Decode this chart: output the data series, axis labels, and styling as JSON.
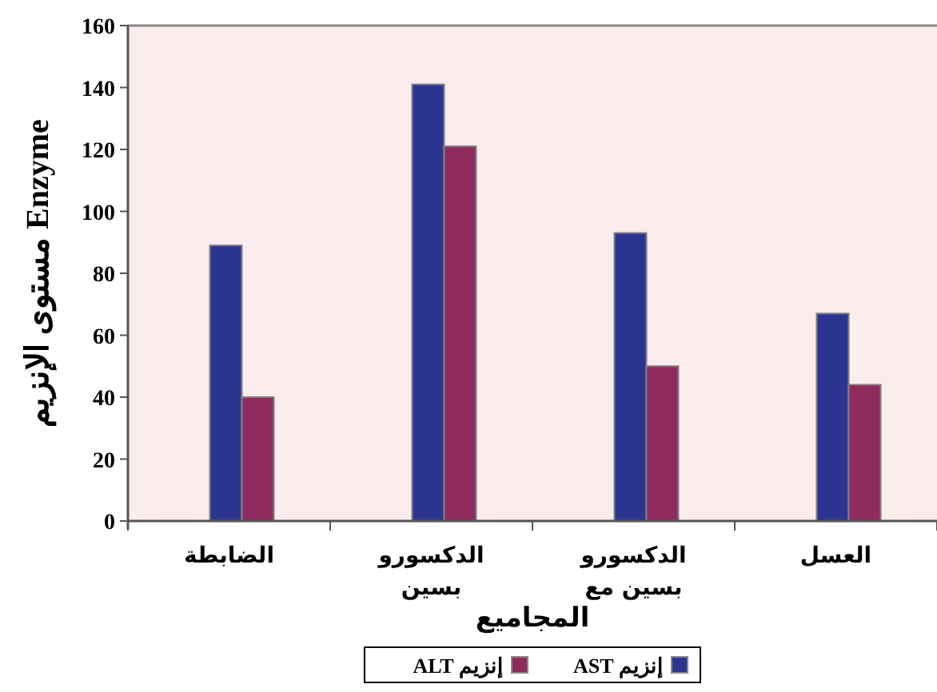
{
  "chart_data": {
    "type": "bar",
    "xlabel": "المجاميع",
    "ylabel": "Enzyme مستوى الإنزيم",
    "categories": [
      "الضابطة",
      "الدكسورو بسين",
      "الدكسورو بسين مع",
      "العسل"
    ],
    "series": [
      {
        "name": "إنزيم AST",
        "color": "#2b3590",
        "values": [
          89,
          141,
          93,
          67
        ]
      },
      {
        "name": "إنزيم ALT",
        "color": "#8e2a5e",
        "values": [
          40,
          121,
          50,
          44
        ]
      }
    ],
    "ylim": [
      0,
      160
    ],
    "yticks": [
      0,
      20,
      40,
      60,
      80,
      100,
      120,
      140,
      160
    ],
    "grid": false,
    "legend": "bottom"
  }
}
